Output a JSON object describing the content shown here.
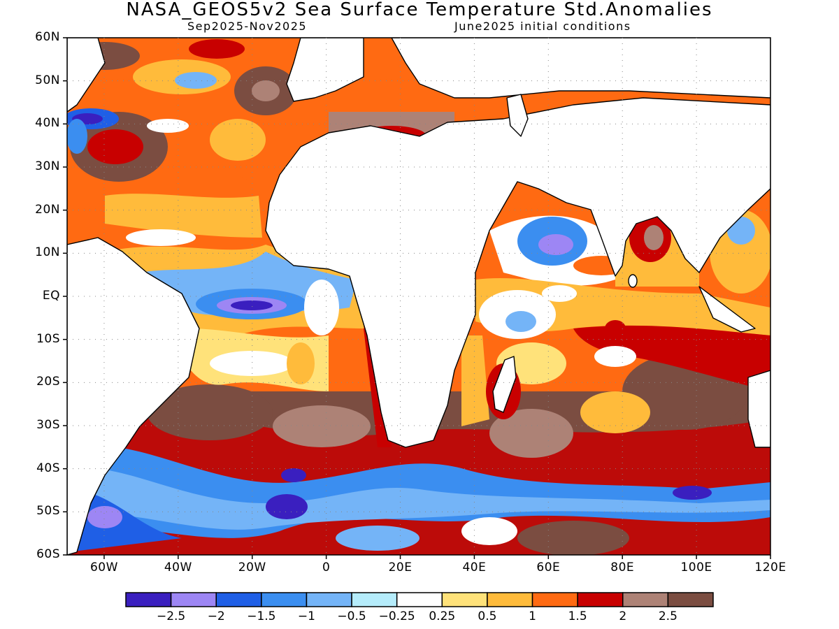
{
  "title": "NASA_GEOS5v2 Sea Surface Temperature Std.Anomalies",
  "subtitle_left": "Sep2025-Nov2025",
  "subtitle_right": "June2025 initial conditions",
  "lat_labels": [
    "60N",
    "50N",
    "40N",
    "30N",
    "20N",
    "10N",
    "EQ",
    "10S",
    "20S",
    "30S",
    "40S",
    "50S",
    "60S"
  ],
  "lon_labels": [
    "60W",
    "40W",
    "20W",
    "0",
    "20E",
    "40E",
    "60E",
    "80E",
    "100E",
    "120E"
  ],
  "colorbar": {
    "colors": [
      "#3a1fbf",
      "#9d86f4",
      "#1f5fe6",
      "#3b8ef0",
      "#74b4f7",
      "#b5ecfb",
      "#ffffff",
      "#ffe27a",
      "#ffbb3b",
      "#ff6a12",
      "#c80000",
      "#ad8276",
      "#7b4d41"
    ],
    "tick_labels": [
      "-2.5",
      "-2",
      "-1.5",
      "-1",
      "-0.5",
      "-0.25",
      "0.25",
      "0.5",
      "1",
      "1.5",
      "2",
      "2.5"
    ]
  },
  "map_data": {
    "lon_range": [
      -70,
      120
    ],
    "lat_range": [
      -60,
      60
    ],
    "variable": "Sea Surface Temperature Std.Anomalies"
  }
}
